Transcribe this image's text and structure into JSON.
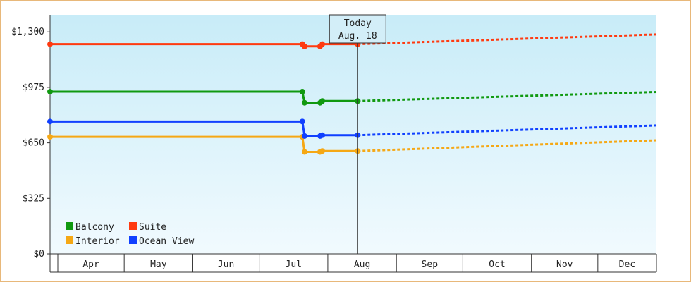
{
  "chart_data": {
    "type": "line",
    "y_ticks": [
      "$0",
      "$325",
      "$650",
      "$975",
      "$1,300"
    ],
    "ylim": [
      0,
      1400
    ],
    "x_ticks": [
      "Apr",
      "May",
      "Jun",
      "Jul",
      "Aug",
      "Sep",
      "Oct",
      "Nov",
      "Dec"
    ],
    "x_range": [
      "2022-04-01",
      "2022-12-31"
    ],
    "today_marker": {
      "line1": "Today",
      "line2": "Aug. 18",
      "date": "2022-08-18"
    },
    "series": [
      {
        "name": "Balcony",
        "color": "#109910",
        "points": [
          [
            "2022-04-01",
            950
          ],
          [
            "2022-07-24",
            950
          ],
          [
            "2022-07-25",
            885
          ],
          [
            "2022-08-01",
            885
          ],
          [
            "2022-08-02",
            895
          ],
          [
            "2022-08-18",
            895
          ]
        ],
        "forecast": [
          [
            "2022-08-18",
            895
          ],
          [
            "2022-12-31",
            948
          ]
        ]
      },
      {
        "name": "Suite",
        "color": "#ff3a10",
        "points": [
          [
            "2022-04-01",
            1228
          ],
          [
            "2022-07-24",
            1228
          ],
          [
            "2022-07-25",
            1215
          ],
          [
            "2022-08-01",
            1215
          ],
          [
            "2022-08-02",
            1228
          ],
          [
            "2022-08-18",
            1228
          ]
        ],
        "forecast": [
          [
            "2022-08-18",
            1228
          ],
          [
            "2022-12-31",
            1285
          ]
        ]
      },
      {
        "name": "Interior",
        "color": "#f5a815",
        "points": [
          [
            "2022-04-01",
            685
          ],
          [
            "2022-07-24",
            685
          ],
          [
            "2022-07-25",
            597
          ],
          [
            "2022-08-01",
            597
          ],
          [
            "2022-08-02",
            602
          ],
          [
            "2022-08-18",
            602
          ]
        ],
        "forecast": [
          [
            "2022-08-18",
            602
          ],
          [
            "2022-12-31",
            665
          ]
        ]
      },
      {
        "name": "Ocean View",
        "color": "#1040ff",
        "points": [
          [
            "2022-04-01",
            775
          ],
          [
            "2022-07-24",
            775
          ],
          [
            "2022-07-25",
            690
          ],
          [
            "2022-08-01",
            690
          ],
          [
            "2022-08-02",
            695
          ],
          [
            "2022-08-18",
            695
          ]
        ],
        "forecast": [
          [
            "2022-08-18",
            695
          ],
          [
            "2022-12-31",
            752
          ]
        ]
      }
    ],
    "legend": {
      "placement": "bottom-left",
      "columns": 2
    },
    "grid": false
  }
}
